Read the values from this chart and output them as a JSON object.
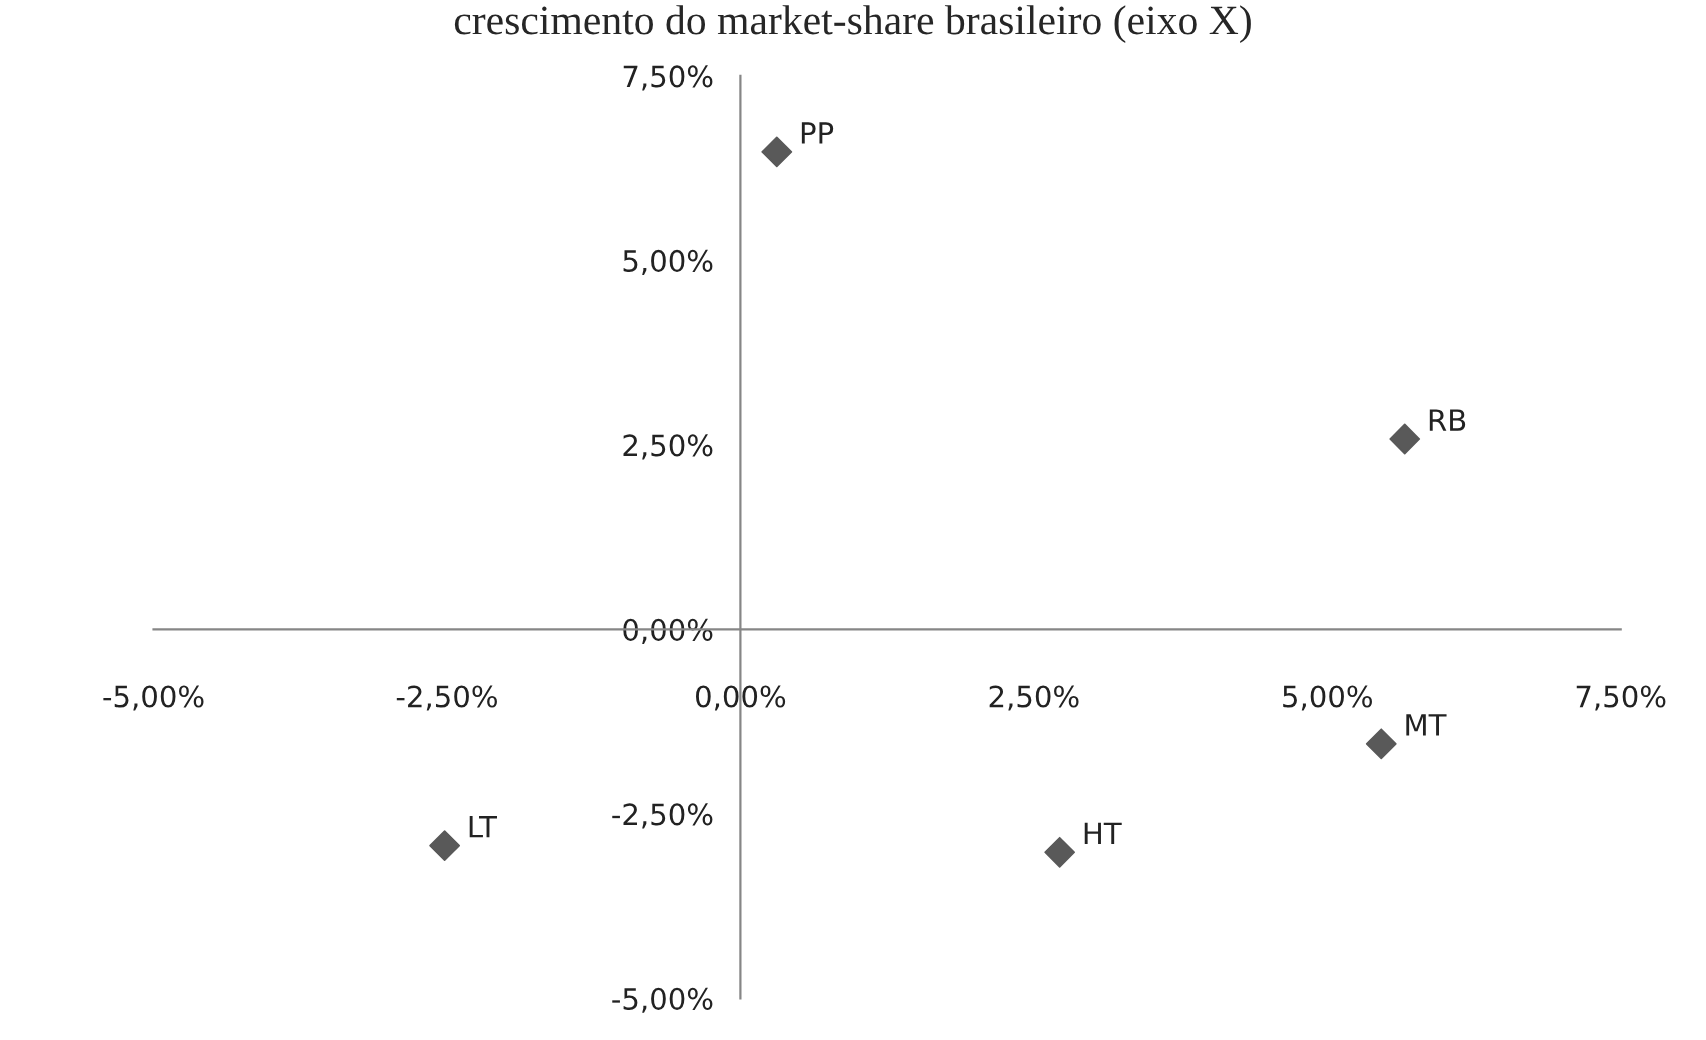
{
  "chart_data": {
    "type": "scatter",
    "title": "crescimento do market-share brasileiro (eixo X)",
    "x": [
      0.31,
      5.66,
      5.46,
      2.72,
      -2.52
    ],
    "values": [
      6.47,
      2.58,
      -1.55,
      -3.02,
      -2.93
    ],
    "color": "#595959",
    "marker": "diamond",
    "grid": false,
    "xlim": [
      -5,
      7.5
    ],
    "ylim": [
      -5,
      7.5
    ],
    "xticks": [
      {
        "value": -5,
        "label": "-5,00%"
      },
      {
        "value": -2.5,
        "label": "-2,50%"
      },
      {
        "value": 0,
        "label": "0,00%"
      },
      {
        "value": 2.5,
        "label": "2,50%"
      },
      {
        "value": 5,
        "label": "5,00%"
      },
      {
        "value": 7.5,
        "label": "7,50%"
      }
    ],
    "yticks": [
      {
        "value": -5,
        "label": "-5,00%"
      },
      {
        "value": -2.5,
        "label": "-2,50%"
      },
      {
        "value": 0,
        "label": "0,00%"
      },
      {
        "value": 2.5,
        "label": "2,50%"
      },
      {
        "value": 5,
        "label": "5,00%"
      },
      {
        "value": 7.5,
        "label": "7,50%"
      }
    ],
    "annotations": [
      {
        "text": "PP",
        "x": 0.31,
        "y": 6.47
      },
      {
        "text": "RB",
        "x": 5.66,
        "y": 2.58
      },
      {
        "text": "MT",
        "x": 5.46,
        "y": -1.55
      },
      {
        "text": "HT",
        "x": 2.72,
        "y": -3.02
      },
      {
        "text": "LT",
        "x": -2.52,
        "y": -2.93
      }
    ]
  }
}
